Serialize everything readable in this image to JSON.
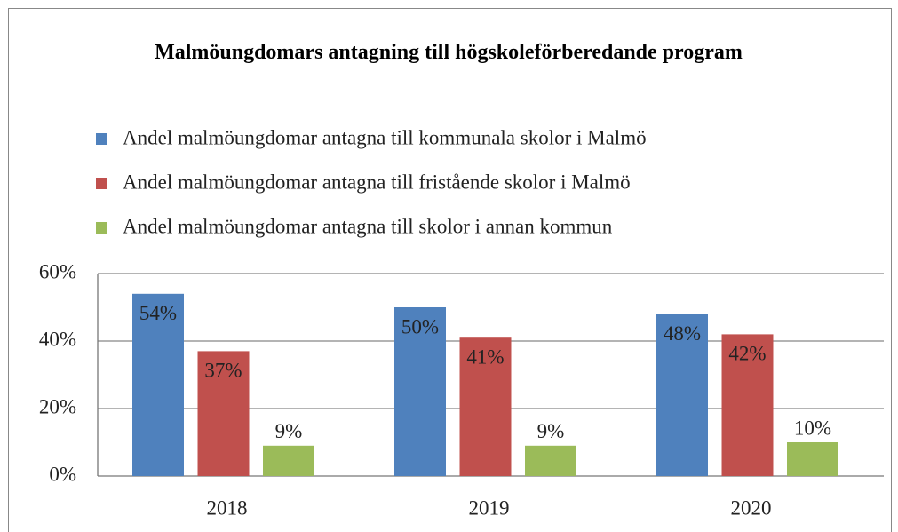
{
  "chart_data": {
    "type": "bar",
    "title": "Malmöungdomars antagning till högskoleförberedande program",
    "categories": [
      "2018",
      "2019",
      "2020"
    ],
    "series": [
      {
        "name": "Andel malmöungdomar antagna till kommunala skolor i Malmö",
        "color": "#4f81bd",
        "values": [
          54,
          50,
          48
        ],
        "value_labels": [
          "54%",
          "50%",
          "48%"
        ]
      },
      {
        "name": "Andel malmöungdomar antagna till fristående skolor i Malmö",
        "color": "#c0504d",
        "values": [
          37,
          41,
          42
        ],
        "value_labels": [
          "37%",
          "41%",
          "42%"
        ]
      },
      {
        "name": "Andel malmöungdomar antagna till skolor i annan kommun",
        "color": "#9bbb59",
        "values": [
          9,
          9,
          10
        ],
        "value_labels": [
          "9%",
          "9%",
          "10%"
        ]
      }
    ],
    "ylim": [
      0,
      60
    ],
    "yticks": [
      {
        "value": 0,
        "label": "0%"
      },
      {
        "value": 20,
        "label": "20%"
      },
      {
        "value": 40,
        "label": "40%"
      },
      {
        "value": 60,
        "label": "60%"
      }
    ],
    "grid": true,
    "legend": "top"
  }
}
